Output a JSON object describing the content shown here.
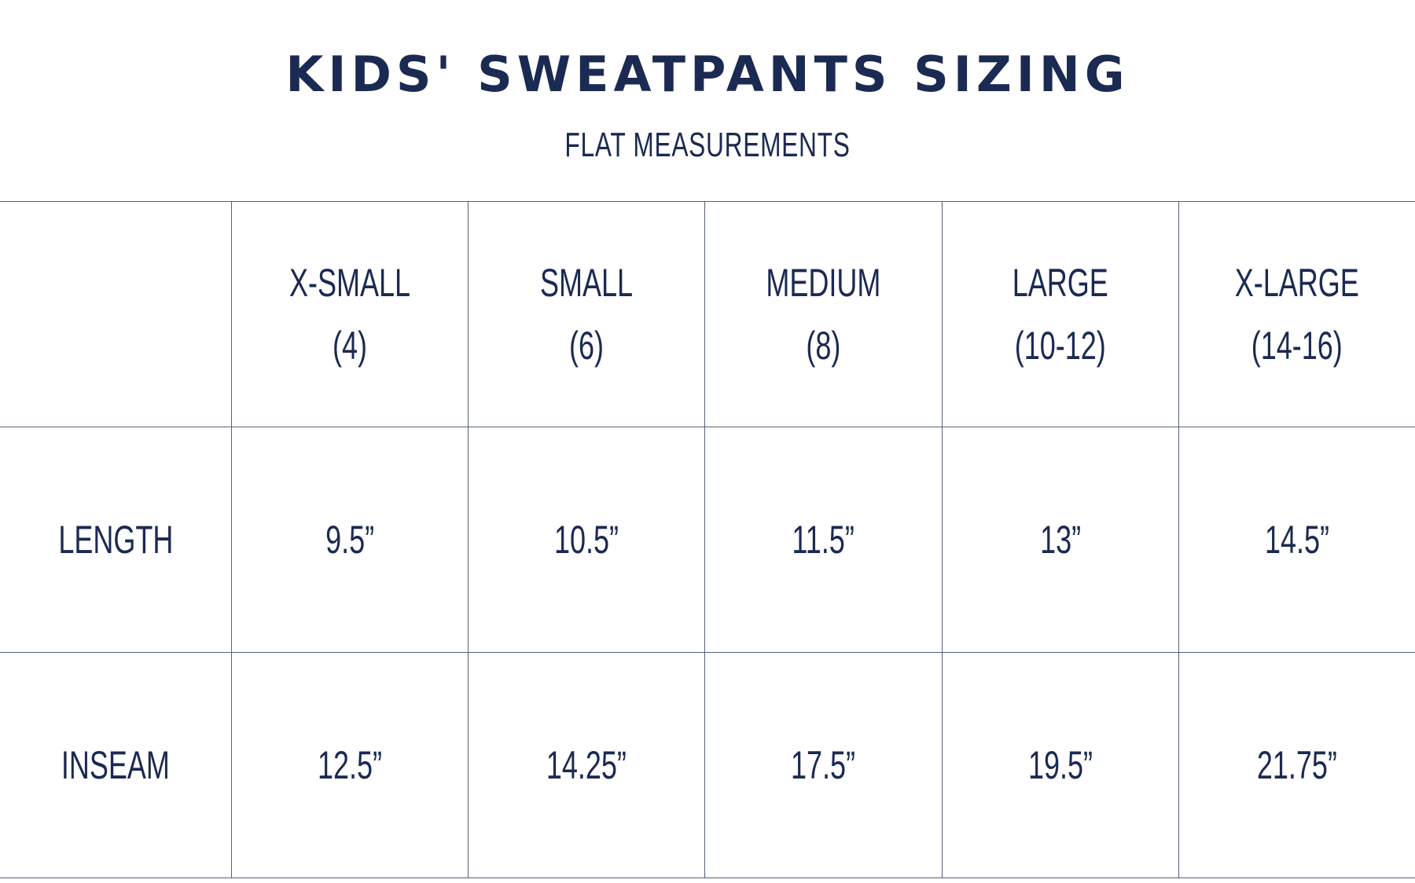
{
  "header": {
    "title": "KIDS' SWEATPANTS SIZING",
    "subtitle": "FLAT MEASUREMENTS"
  },
  "table": {
    "columns": [
      [
        "X-SMALL",
        "(4)"
      ],
      [
        "SMALL",
        "(6)"
      ],
      [
        "MEDIUM",
        "(8)"
      ],
      [
        "LARGE",
        "(10-12)"
      ],
      [
        "X-LARGE",
        "(14-16)"
      ]
    ],
    "rows": [
      [
        "LENGTH",
        "9.5”",
        "10.5”",
        "11.5”",
        "13”",
        "14.5”"
      ],
      [
        "INSEAM",
        "12.5”",
        "14.25”",
        "17.5”",
        "19.5”",
        "21.75”"
      ]
    ]
  }
}
